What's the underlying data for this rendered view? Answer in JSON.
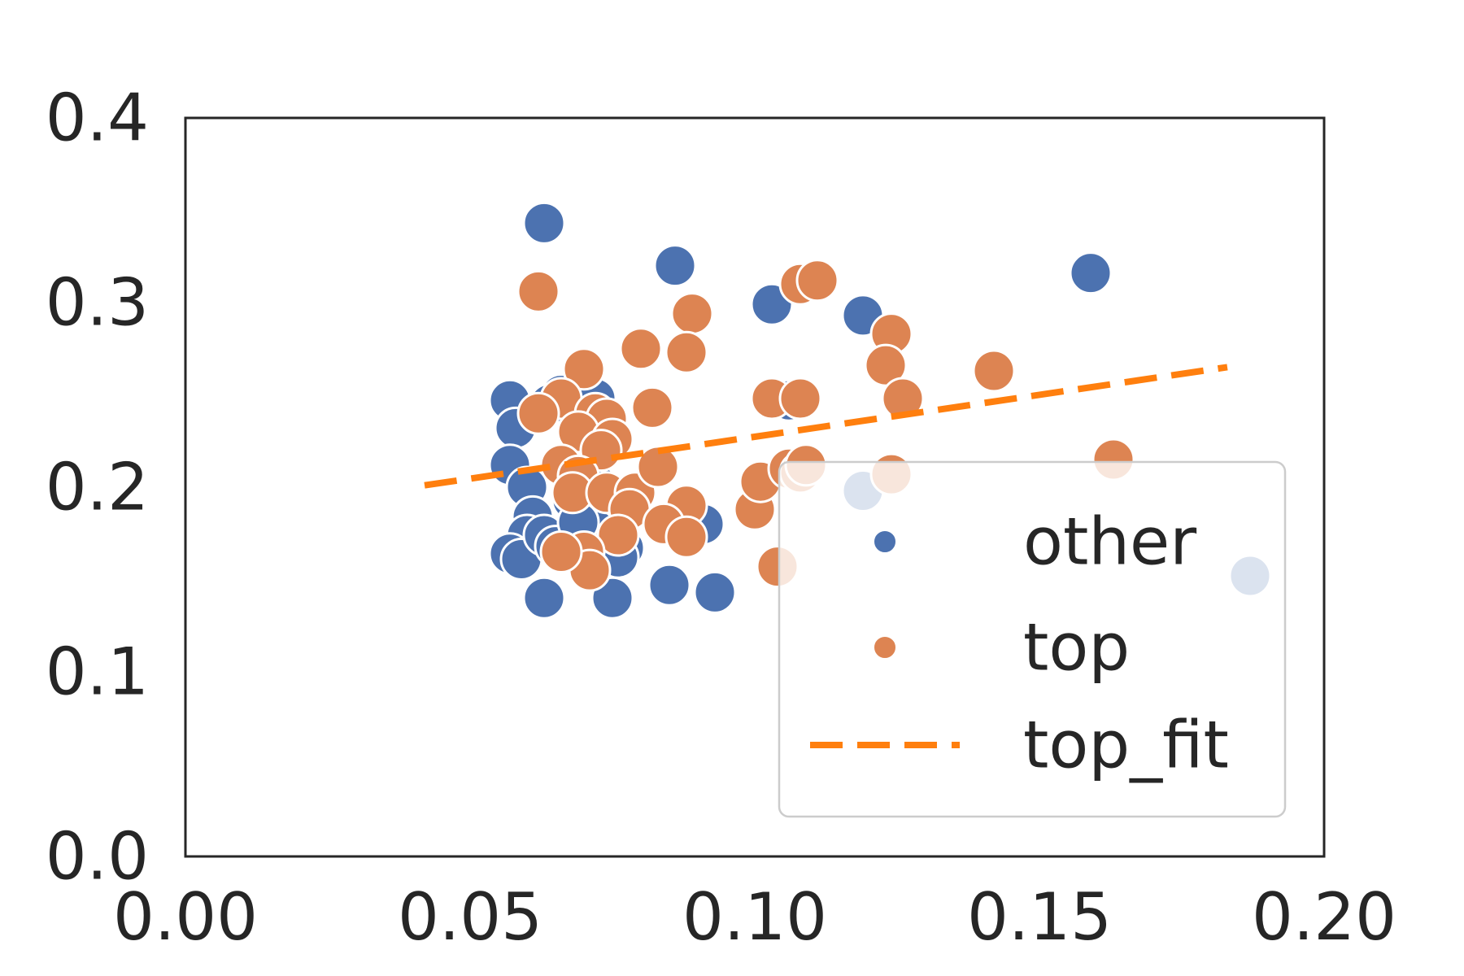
{
  "chart_data": {
    "type": "scatter",
    "title": "",
    "xlabel": "",
    "ylabel": "",
    "xlim": [
      0.0,
      0.2
    ],
    "ylim": [
      0.0,
      0.4
    ],
    "xticks": [
      "0.00",
      "0.05",
      "0.10",
      "0.15",
      "0.20"
    ],
    "yticks": [
      "0.0",
      "0.1",
      "0.2",
      "0.3",
      "0.4"
    ],
    "grid": false,
    "legend_position": "lower-right",
    "series": [
      {
        "name": "other",
        "color": "#4c72b0",
        "points": [
          [
            0.063,
            0.343
          ],
          [
            0.086,
            0.32
          ],
          [
            0.103,
            0.299
          ],
          [
            0.119,
            0.293
          ],
          [
            0.159,
            0.316
          ],
          [
            0.057,
            0.247
          ],
          [
            0.058,
            0.232
          ],
          [
            0.057,
            0.212
          ],
          [
            0.06,
            0.2
          ],
          [
            0.066,
            0.25
          ],
          [
            0.064,
            0.245
          ],
          [
            0.072,
            0.248
          ],
          [
            0.073,
            0.221
          ],
          [
            0.072,
            0.202
          ],
          [
            0.068,
            0.193
          ],
          [
            0.071,
            0.19
          ],
          [
            0.076,
            0.19
          ],
          [
            0.078,
            0.188
          ],
          [
            0.072,
            0.177
          ],
          [
            0.07,
            0.171
          ],
          [
            0.077,
            0.167
          ],
          [
            0.076,
            0.162
          ],
          [
            0.061,
            0.184
          ],
          [
            0.06,
            0.174
          ],
          [
            0.057,
            0.164
          ],
          [
            0.059,
            0.161
          ],
          [
            0.063,
            0.174
          ],
          [
            0.065,
            0.168
          ],
          [
            0.069,
            0.181
          ],
          [
            0.091,
            0.18
          ],
          [
            0.063,
            0.14
          ],
          [
            0.075,
            0.14
          ],
          [
            0.085,
            0.147
          ],
          [
            0.093,
            0.143
          ],
          [
            0.106,
            0.247
          ],
          [
            0.119,
            0.198
          ],
          [
            0.187,
            0.152
          ]
        ]
      },
      {
        "name": "top",
        "color": "#dd8452",
        "points": [
          [
            0.062,
            0.306
          ],
          [
            0.07,
            0.264
          ],
          [
            0.08,
            0.275
          ],
          [
            0.089,
            0.294
          ],
          [
            0.088,
            0.273
          ],
          [
            0.066,
            0.248
          ],
          [
            0.072,
            0.24
          ],
          [
            0.062,
            0.24
          ],
          [
            0.074,
            0.237
          ],
          [
            0.069,
            0.23
          ],
          [
            0.075,
            0.226
          ],
          [
            0.073,
            0.22
          ],
          [
            0.066,
            0.212
          ],
          [
            0.069,
            0.206
          ],
          [
            0.068,
            0.197
          ],
          [
            0.074,
            0.197
          ],
          [
            0.079,
            0.197
          ],
          [
            0.082,
            0.243
          ],
          [
            0.083,
            0.211
          ],
          [
            0.088,
            0.19
          ],
          [
            0.078,
            0.188
          ],
          [
            0.084,
            0.18
          ],
          [
            0.088,
            0.173
          ],
          [
            0.076,
            0.174
          ],
          [
            0.07,
            0.165
          ],
          [
            0.071,
            0.155
          ],
          [
            0.066,
            0.165
          ],
          [
            0.1,
            0.188
          ],
          [
            0.101,
            0.203
          ],
          [
            0.103,
            0.248
          ],
          [
            0.108,
            0.248
          ],
          [
            0.106,
            0.21
          ],
          [
            0.108,
            0.208
          ],
          [
            0.109,
            0.212
          ],
          [
            0.108,
            0.31
          ],
          [
            0.111,
            0.312
          ],
          [
            0.124,
            0.283
          ],
          [
            0.123,
            0.266
          ],
          [
            0.126,
            0.248
          ],
          [
            0.124,
            0.207
          ],
          [
            0.104,
            0.157
          ],
          [
            0.142,
            0.263
          ],
          [
            0.163,
            0.215
          ]
        ]
      }
    ],
    "fit": {
      "name": "top_fit",
      "color": "#ff7f0e",
      "x": [
        0.042,
        0.183
      ],
      "y": [
        0.201,
        0.265
      ]
    }
  }
}
